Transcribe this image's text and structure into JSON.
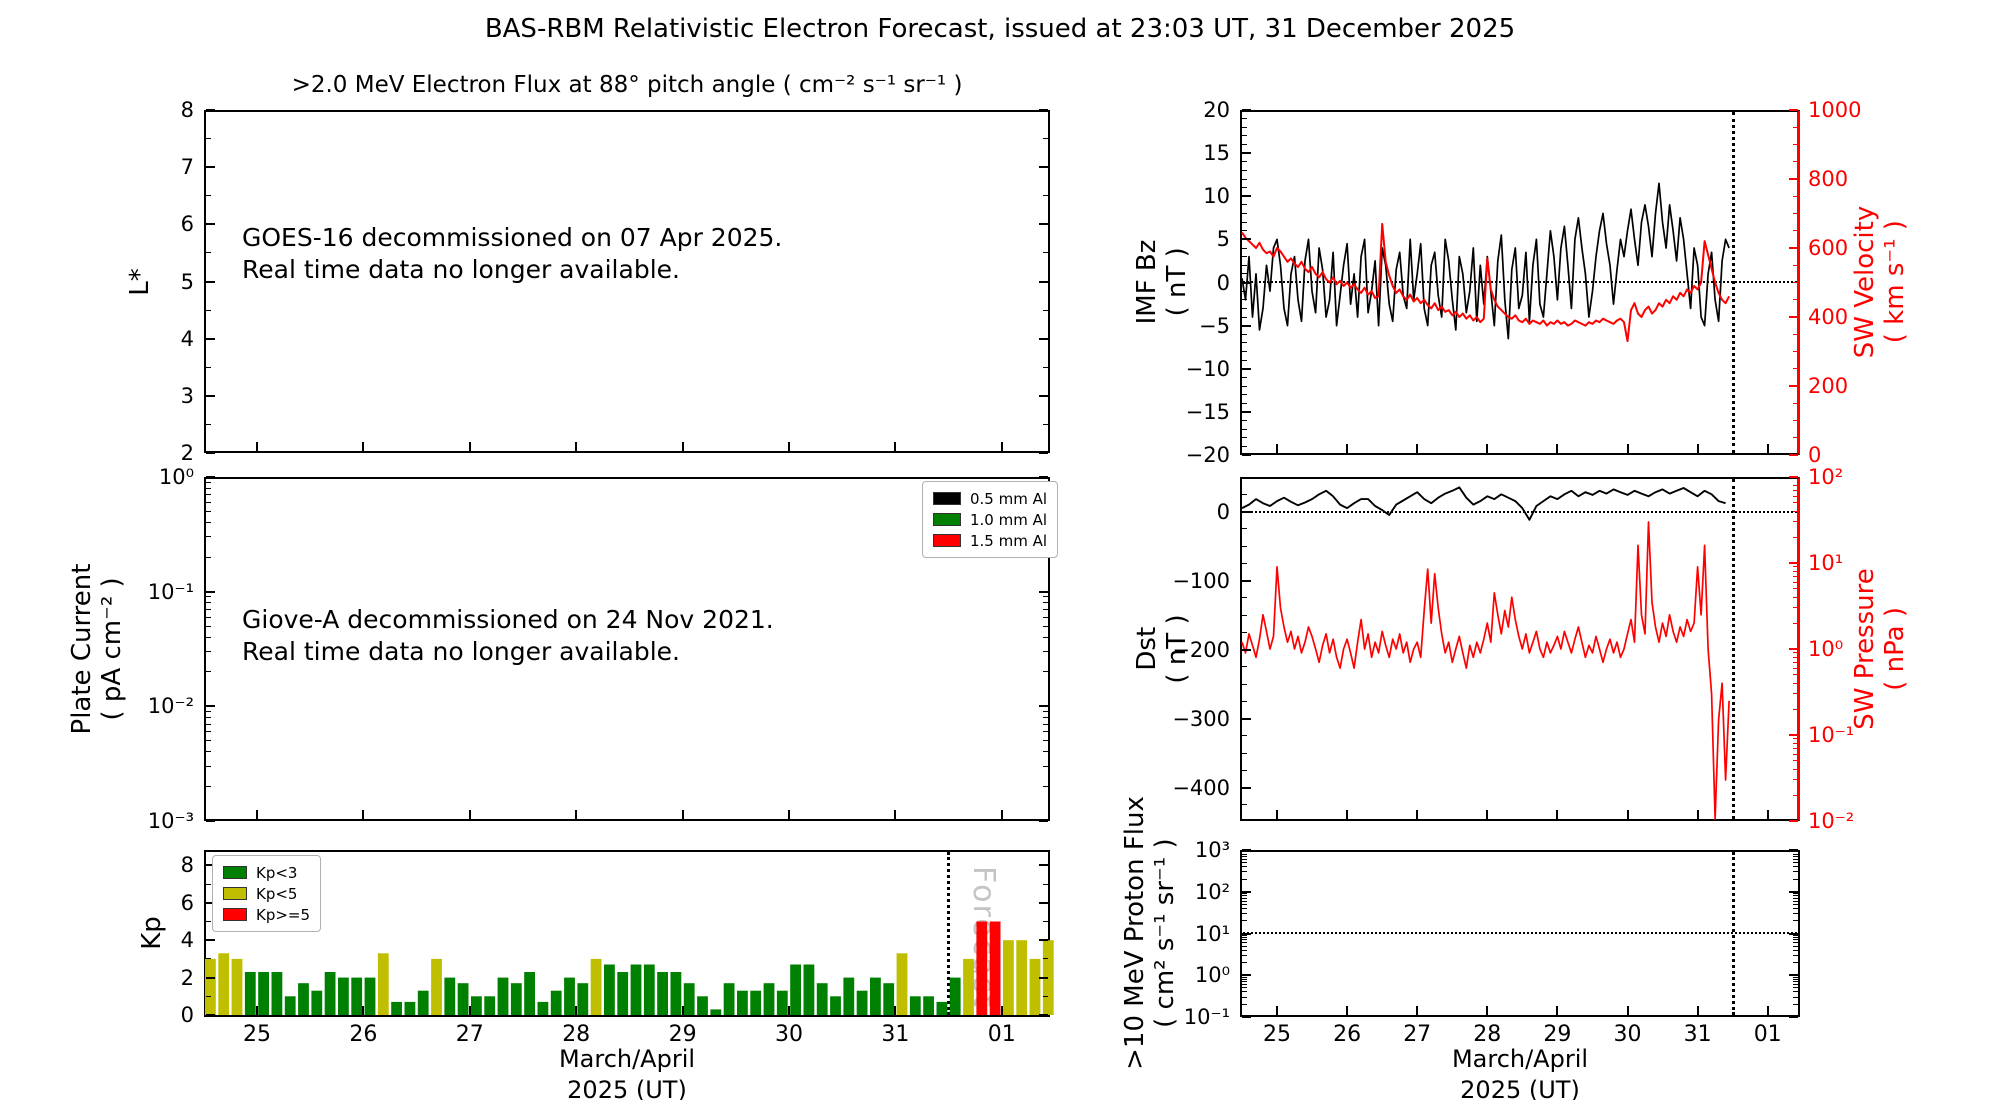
{
  "title": "BAS-RBM Relativistic Electron Forecast, issued at 23:03 UT, 31 December 2025",
  "xaxis": {
    "ticks": [
      "25",
      "26",
      "27",
      "28",
      "29",
      "30",
      "31",
      "01"
    ],
    "label_line1": "March/April",
    "label_line2": "2025 (UT)"
  },
  "panels": {
    "electron": {
      "subtitle": ">2.0 MeV Electron Flux at 88° pitch angle ( cm⁻² s⁻¹ sr⁻¹ )",
      "ylabel": "L*",
      "yticks": [
        "8",
        "7",
        "6",
        "5",
        "4",
        "3",
        "2"
      ],
      "notice_line1": "GOES-16 decommissioned on 07 Apr 2025.",
      "notice_line2": "Real time data no longer available."
    },
    "plate": {
      "ylabel_line1": "Plate Current",
      "ylabel_line2": "( pA cm⁻² )",
      "yticks": [
        "10⁰",
        "10⁻¹",
        "10⁻²",
        "10⁻³"
      ],
      "notice_line1": "Giove-A decommissioned on 24 Nov 2021.",
      "notice_line2": "Real time data no longer available.",
      "legend": [
        {
          "label": "0.5 mm Al",
          "color": "#000000"
        },
        {
          "label": "1.0 mm Al",
          "color": "#008000"
        },
        {
          "label": "1.5 mm Al",
          "color": "#ff0000"
        }
      ]
    },
    "kp": {
      "ylabel": "Kp",
      "yticks": [
        "0",
        "2",
        "4",
        "6",
        "8"
      ],
      "legend": [
        {
          "label": "Kp<3",
          "color": "#008000"
        },
        {
          "label": "Kp<5",
          "color": "#bfbf00"
        },
        {
          "label": "Kp>=5",
          "color": "#ff0000"
        }
      ],
      "forecast_label": "Forecast"
    },
    "imf": {
      "ylabel_line1": "IMF Bz",
      "ylabel_line2": "( nT )",
      "yticks": [
        "20",
        "15",
        "10",
        "5",
        "0",
        "−5",
        "−10",
        "−15",
        "−20"
      ],
      "right_ylabel_line1": "SW Velocity",
      "right_ylabel_line2": "( km s⁻¹ )",
      "right_yticks": [
        "1000",
        "800",
        "600",
        "400",
        "200",
        "0"
      ]
    },
    "dst": {
      "ylabel_line1": "Dst",
      "ylabel_line2": "( nT )",
      "yticks": [
        "0",
        "−100",
        "−200",
        "−300",
        "−400"
      ],
      "right_ylabel_line1": "SW Pressure",
      "right_ylabel_line2": "( nPa )",
      "right_yticks": [
        "10²",
        "10¹",
        "10⁰",
        "10⁻¹",
        "10⁻²"
      ]
    },
    "proton": {
      "ylabel_line1": ">10 MeV Proton Flux",
      "ylabel_line2": "( cm² s⁻¹ sr⁻¹ )",
      "yticks": [
        "10³",
        "10²",
        "10¹",
        "10⁰",
        "10⁻¹"
      ]
    }
  },
  "chart_data": [
    {
      "type": "line",
      "title": "Electron flux L* panel",
      "xlabel": "March/April 2025 (UT)",
      "ylabel": "L*",
      "ylim": [
        2,
        8
      ],
      "x_range": [
        24.47,
        32.43
      ],
      "series": [],
      "annotation": "GOES-16 decommissioned on 07 Apr 2025. Real time data no longer available."
    },
    {
      "type": "line",
      "title": "Plate Current panel",
      "ylabel": "Plate Current ( pA cm-2 )",
      "ylim_log_exp": [
        -3,
        0
      ],
      "x_range": [
        24.47,
        32.43
      ],
      "series": [],
      "legend_entries": [
        "0.5 mm Al",
        "1.0 mm Al",
        "1.5 mm Al"
      ],
      "annotation": "Giove-A decommissioned on 24 Nov 2021. Real time data no longer available."
    },
    {
      "type": "bar",
      "title": "Kp",
      "ylabel": "Kp",
      "ylim": [
        0,
        8.9
      ],
      "x_range": [
        24.47,
        32.43
      ],
      "t0": 24.5,
      "dt": 0.125,
      "forecast_start": 31.5,
      "color_rule": {
        "green_below": 3,
        "yellow_below": 5,
        "red_at_or_above": 5
      },
      "colors": {
        "green": "#008000",
        "yellow": "#bfbf00",
        "red": "#ff0000"
      },
      "observed": [
        3,
        3.3,
        3,
        2.3,
        2.3,
        2.3,
        1,
        1.7,
        1.3,
        2.3,
        2,
        2,
        2,
        3.3,
        0.7,
        0.7,
        1.3,
        3,
        2,
        1.7,
        1,
        1,
        2,
        1.7,
        2.3,
        0.7,
        1.3,
        2,
        1.7,
        3,
        2.7,
        2.3,
        2.7,
        2.7,
        2.3,
        2.3,
        1.7,
        1,
        0.3,
        1.7,
        1.3,
        1.3,
        1.7,
        1.3,
        2.7,
        2.7,
        1.7,
        1,
        2,
        1.3,
        2,
        1.7,
        3.3,
        1,
        1,
        0.7
      ],
      "forecast": [
        2,
        3,
        5,
        5,
        4,
        4,
        3,
        4
      ]
    },
    {
      "type": "line",
      "title": "IMF Bz and SW Velocity",
      "x_range": [
        24.47,
        32.43
      ],
      "vline_forecast_x": 31.5,
      "hline": {
        "imf_bz": 0,
        "sw_velocity": 500
      },
      "series": [
        {
          "name": "IMF Bz (nT)",
          "color": "#000000",
          "axis": "left",
          "ylim": [
            -20,
            20
          ],
          "x0": 24.5,
          "dx": 0.05,
          "y": [
            0.5,
            -2,
            3,
            -4,
            1,
            -5.5,
            -3,
            2,
            -1,
            4,
            5,
            2,
            -3,
            -5,
            1,
            3,
            -2,
            -4.5,
            2.5,
            5,
            -1,
            -3.5,
            4,
            1.5,
            -4,
            -2,
            3.5,
            -5,
            -1.5,
            2,
            4.5,
            -2.5,
            1,
            -4,
            3,
            5,
            -3.5,
            -1,
            2.5,
            -5,
            4,
            2,
            -2.5,
            -4.5,
            1.5,
            3.5,
            -1.5,
            -3,
            5,
            -2,
            1,
            4.5,
            -3,
            -5,
            2,
            3.5,
            -1.5,
            -4,
            5,
            2.5,
            -2,
            -5.5,
            3,
            1,
            -3.5,
            -1,
            4,
            -4.5,
            2,
            -2.5,
            3,
            -1,
            -5,
            2.5,
            5.5,
            -2,
            -6.5,
            1.5,
            4,
            -3,
            -1.5,
            3.5,
            -4.5,
            2,
            5,
            -2.5,
            -4,
            1,
            6,
            3,
            -2,
            4,
            6.5,
            2,
            -3,
            5,
            7.5,
            4,
            1,
            -4,
            -1,
            3,
            6,
            8,
            4.5,
            2,
            -2.5,
            1.5,
            5,
            3,
            6,
            8.5,
            5,
            2,
            7,
            9,
            6.5,
            3,
            8,
            11.5,
            7,
            4,
            9,
            6,
            2.5,
            7.5,
            5,
            1,
            -3,
            4,
            2,
            -4,
            -5,
            1,
            3.5,
            -2,
            -4.5,
            2.5,
            5,
            4
          ]
        },
        {
          "name": "SW Velocity (km s-1)",
          "color": "#ff0000",
          "axis": "right",
          "ylim": [
            0,
            1000
          ],
          "x0": 24.5,
          "dx": 0.05,
          "y": [
            645,
            630,
            620,
            610,
            600,
            615,
            595,
            585,
            590,
            575,
            600,
            590,
            575,
            560,
            570,
            555,
            545,
            560,
            540,
            530,
            545,
            525,
            515,
            530,
            510,
            500,
            515,
            495,
            505,
            490,
            500,
            485,
            495,
            480,
            470,
            485,
            465,
            475,
            455,
            460,
            670,
            560,
            520,
            490,
            470,
            480,
            460,
            450,
            465,
            445,
            455,
            440,
            450,
            435,
            425,
            440,
            420,
            430,
            415,
            420,
            405,
            415,
            400,
            410,
            395,
            405,
            390,
            400,
            385,
            395,
            570,
            480,
            450,
            430,
            420,
            410,
            400,
            395,
            405,
            390,
            385,
            395,
            380,
            390,
            385,
            380,
            390,
            375,
            385,
            380,
            390,
            380,
            385,
            375,
            380,
            390,
            385,
            380,
            375,
            385,
            380,
            390,
            385,
            395,
            390,
            385,
            380,
            390,
            395,
            385,
            330,
            420,
            440,
            410,
            400,
            420,
            430,
            410,
            420,
            440,
            430,
            450,
            440,
            460,
            450,
            470,
            460,
            480,
            470,
            490,
            480,
            500,
            620,
            580,
            540,
            500,
            470,
            450,
            440,
            460
          ]
        }
      ]
    },
    {
      "type": "line",
      "title": "Dst and SW Pressure",
      "x_range": [
        24.47,
        32.43
      ],
      "vline_forecast_x": 31.5,
      "hline": {
        "dst": 0
      },
      "series": [
        {
          "name": "Dst (nT)",
          "color": "#000000",
          "axis": "left",
          "ylim": [
            -460,
            50
          ],
          "x0": 24.5,
          "dx": 0.1,
          "y": [
            5,
            10,
            18,
            12,
            8,
            15,
            20,
            14,
            9,
            13,
            18,
            25,
            30,
            22,
            10,
            5,
            12,
            18,
            18,
            8,
            2,
            -5,
            10,
            16,
            22,
            28,
            18,
            12,
            20,
            26,
            30,
            35,
            20,
            10,
            15,
            22,
            18,
            25,
            20,
            15,
            5,
            -12,
            8,
            15,
            22,
            18,
            25,
            30,
            22,
            28,
            24,
            30,
            26,
            32,
            28,
            24,
            30,
            26,
            22,
            28,
            32,
            26,
            30,
            34,
            28,
            22,
            30,
            25,
            15,
            12
          ]
        },
        {
          "name": "SW Pressure (nPa)",
          "color": "#ff0000",
          "axis": "right",
          "ylim_log_exp": [
            -2,
            2
          ],
          "x0": 24.5,
          "dx": 0.05,
          "y": [
            1.2,
            0.9,
            1.5,
            1.1,
            0.8,
            1.3,
            2.5,
            1.6,
            1.0,
            1.4,
            9,
            3,
            1.8,
            1.2,
            1.6,
            1.0,
            1.4,
            0.9,
            1.2,
            1.8,
            1.4,
            1.0,
            0.7,
            1.1,
            1.5,
            0.9,
            1.3,
            0.8,
            0.6,
            1.0,
            1.3,
            0.9,
            0.6,
            1.2,
            2.2,
            1.0,
            1.5,
            0.8,
            1.2,
            0.9,
            1.6,
            1.1,
            0.8,
            1.3,
            1.0,
            1.5,
            0.9,
            1.2,
            0.7,
            1.0,
            1.2,
            0.8,
            2.8,
            8.5,
            2.0,
            7.5,
            3.0,
            1.5,
            0.9,
            1.2,
            0.7,
            1.0,
            1.4,
            0.9,
            0.6,
            1.1,
            0.8,
            1.2,
            0.9,
            1.3,
            2.0,
            1.2,
            4.5,
            2.5,
            1.5,
            2.8,
            1.8,
            4.0,
            2.2,
            1.4,
            1.0,
            1.5,
            0.9,
            1.2,
            1.6,
            1.0,
            0.8,
            1.2,
            0.9,
            1.1,
            1.4,
            1.0,
            1.6,
            1.2,
            0.9,
            1.3,
            1.8,
            1.2,
            0.8,
            1.1,
            0.9,
            1.4,
            1.0,
            0.7,
            1.0,
            1.3,
            0.9,
            1.2,
            0.8,
            1.0,
            1.5,
            2.2,
            1.2,
            16,
            2.5,
            1.5,
            30,
            3.5,
            1.8,
            1.2,
            2.0,
            1.4,
            2.5,
            1.6,
            1.2,
            1.8,
            1.4,
            2.2,
            1.6,
            2.0,
            9,
            2.5,
            16,
            1.0,
            0.3,
            0.008,
            0.15,
            0.4,
            0.03,
            0.25
          ]
        }
      ]
    },
    {
      "type": "line",
      "title": ">10 MeV Proton Flux",
      "ylim_log_exp": [
        -1,
        3
      ],
      "x_range": [
        24.47,
        32.43
      ],
      "vline_forecast_x": 31.5,
      "hline_log_value": 10,
      "series": []
    }
  ]
}
